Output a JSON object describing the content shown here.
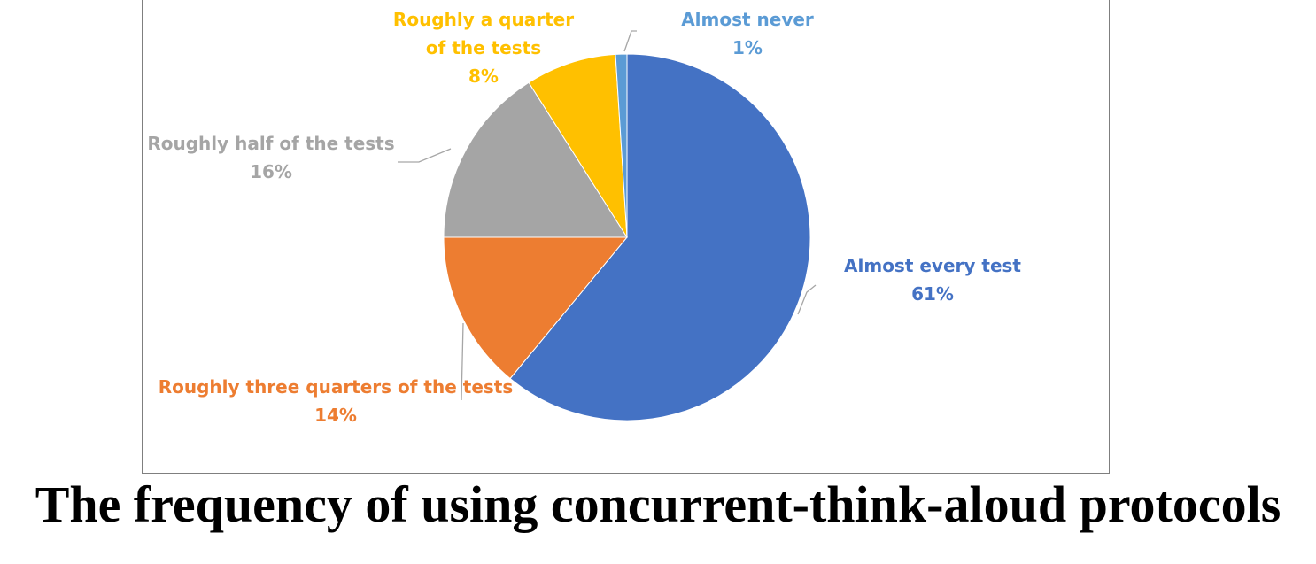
{
  "chart_data": {
    "type": "pie",
    "title": "The frequency of using concurrent-think-aloud protocols",
    "slices": [
      {
        "label": "Almost every test",
        "value": 61,
        "display": "61%",
        "color": "#4472c4"
      },
      {
        "label": "Roughly three quarters of the tests",
        "value": 14,
        "display": "14%",
        "color": "#ed7d31"
      },
      {
        "label": "Roughly half of the tests",
        "value": 16,
        "display": "16%",
        "color": "#a5a5a5"
      },
      {
        "label": "Roughly a quarter of the tests",
        "value": 8,
        "display": "8%",
        "color": "#ffc000"
      },
      {
        "label": "Almost never",
        "value": 1,
        "display": "1%",
        "color": "#5b9bd5"
      }
    ],
    "label_lines": [
      [
        "Almost every test",
        "61%"
      ],
      [
        "Roughly three quarters of the tests",
        "14%"
      ],
      [
        "Roughly half of the tests",
        "16%"
      ],
      [
        "Roughly a quarter",
        "of the tests",
        "8%"
      ],
      [
        "Almost never",
        "1%"
      ]
    ]
  }
}
